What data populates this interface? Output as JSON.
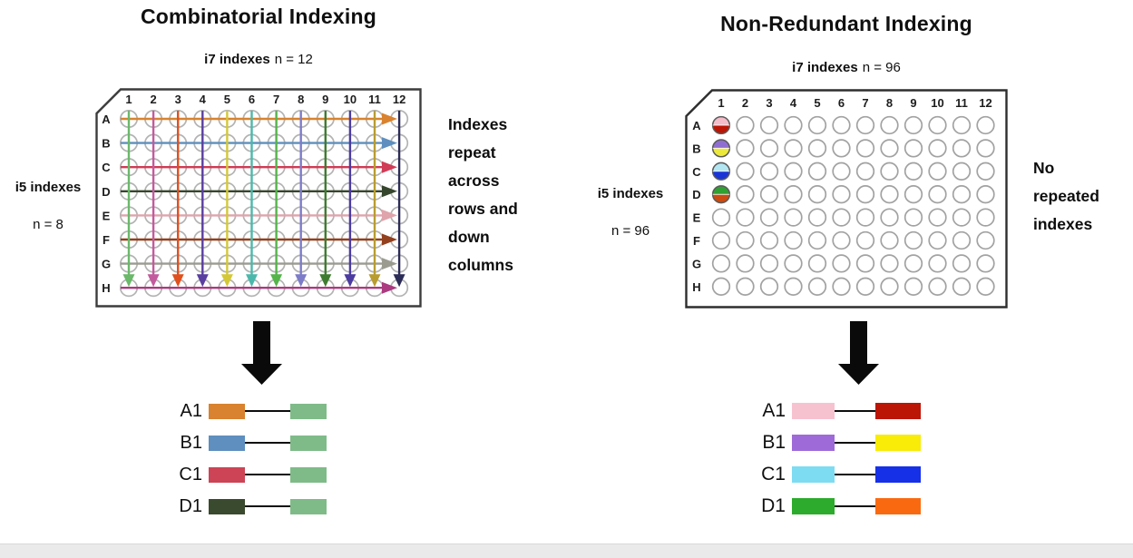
{
  "left": {
    "title": "Combinatorial Indexing",
    "i7_bold": "i7 indexes",
    "i7_rest": "n = 12",
    "i5_bold": "i5 indexes",
    "i5_rest": "n = 8",
    "note_lines": [
      "Indexes",
      "repeat",
      "across",
      "rows and",
      "down",
      "columns"
    ],
    "plate": {
      "columns": [
        "1",
        "2",
        "3",
        "4",
        "5",
        "6",
        "7",
        "8",
        "9",
        "10",
        "11",
        "12"
      ],
      "rows": [
        "A",
        "B",
        "C",
        "D",
        "E",
        "F",
        "G",
        "H"
      ],
      "row_arrow_colors": [
        "#d9822f",
        "#5e8fbe",
        "#d13b55",
        "#36462e",
        "#dfa4ac",
        "#93401e",
        "#9b9b90",
        "#ab3a80"
      ],
      "col_arrow_colors": [
        "#6ab86a",
        "#c45a9e",
        "#e0501e",
        "#5a3fa0",
        "#d4c838",
        "#4cb8ac",
        "#55b44a",
        "#7d7cc8",
        "#3e7c30",
        "#4c3ba0",
        "#b89c30",
        "#2c2c58"
      ]
    },
    "legend": [
      {
        "label": "A1",
        "left_color": "#d9822f",
        "right_color": "#7fbb88"
      },
      {
        "label": "B1",
        "left_color": "#5e8fbe",
        "right_color": "#7fbb88"
      },
      {
        "label": "C1",
        "left_color": "#cc4455",
        "right_color": "#7fbb88"
      },
      {
        "label": "D1",
        "left_color": "#3a4a2e",
        "right_color": "#7fbb88"
      }
    ]
  },
  "right": {
    "title": "Non-Redundant Indexing",
    "i7_bold": "i7 indexes",
    "i7_rest": "n = 96",
    "i5_bold": "i5 indexes",
    "i5_rest": "n = 96",
    "note_lines": [
      "No",
      "repeated",
      "indexes"
    ],
    "plate": {
      "columns": [
        "1",
        "2",
        "3",
        "4",
        "5",
        "6",
        "7",
        "8",
        "9",
        "10",
        "11",
        "12"
      ],
      "rows": [
        "A",
        "B",
        "C",
        "D",
        "E",
        "F",
        "G",
        "H"
      ],
      "filled_wells": [
        {
          "well": "A1",
          "top_color": "#f4bcc8",
          "bottom_color": "#bb1505"
        },
        {
          "well": "B1",
          "top_color": "#8f6ed2",
          "bottom_color": "#ece93a"
        },
        {
          "well": "C1",
          "top_color": "#b2e6f2",
          "bottom_color": "#1a35d6"
        },
        {
          "well": "D1",
          "top_color": "#2fa032",
          "bottom_color": "#cc4a10"
        }
      ]
    },
    "legend": [
      {
        "label": "A1",
        "left_color": "#f7c2d0",
        "right_color": "#bb1505"
      },
      {
        "label": "B1",
        "left_color": "#9e6ad8",
        "right_color": "#f8ec08"
      },
      {
        "label": "C1",
        "left_color": "#7edcf2",
        "right_color": "#1630e8"
      },
      {
        "label": "D1",
        "left_color": "#2cab2c",
        "right_color": "#f96a10"
      }
    ]
  }
}
